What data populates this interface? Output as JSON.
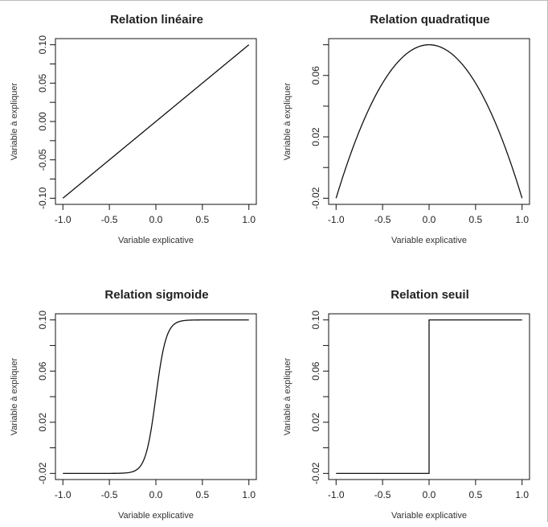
{
  "chart_data": [
    {
      "type": "line",
      "title": "Relation linéaire",
      "xlabel": "Variable explicative",
      "ylabel": "Variable à expliquer",
      "xlim": [
        -1.0,
        1.0
      ],
      "ylim": [
        -0.1,
        0.1
      ],
      "xticks": [
        "-1.0",
        "-0.5",
        "0.0",
        "0.5",
        "1.0"
      ],
      "yticks": [
        "-0.10",
        "-0.05",
        "0.00",
        "0.05",
        "0.10"
      ],
      "function": "linear",
      "points": [
        [
          -1.0,
          -0.1
        ],
        [
          -0.5,
          -0.05
        ],
        [
          0.0,
          0.0
        ],
        [
          0.5,
          0.05
        ],
        [
          1.0,
          0.1
        ]
      ],
      "grid": false
    },
    {
      "type": "line",
      "title": "Relation quadratique",
      "xlabel": "Variable explicative",
      "ylabel": "Variable à expliquer",
      "xlim": [
        -1.0,
        1.0
      ],
      "ylim": [
        -0.02,
        0.08
      ],
      "xticks": [
        "-1.0",
        "-0.5",
        "0.0",
        "0.5",
        "1.0"
      ],
      "yticks": [
        "-0.02",
        "0.02",
        "0.06"
      ],
      "function": "quadratic",
      "points": [
        [
          -1.0,
          -0.02
        ],
        [
          -0.5,
          0.055
        ],
        [
          0.0,
          0.08
        ],
        [
          0.5,
          0.055
        ],
        [
          1.0,
          -0.02
        ]
      ],
      "grid": false
    },
    {
      "type": "line",
      "title": "Relation sigmoide",
      "xlabel": "Variable explicative",
      "ylabel": "Variable à expliquer",
      "xlim": [
        -1.0,
        1.0
      ],
      "ylim": [
        -0.02,
        0.1
      ],
      "xticks": [
        "-1.0",
        "-0.5",
        "0.0",
        "0.5",
        "1.0"
      ],
      "yticks": [
        "-0.02",
        "0.02",
        "0.06",
        "0.10"
      ],
      "function": "sigmoid",
      "points": [
        [
          -1.0,
          -0.02
        ],
        [
          -0.3,
          -0.019
        ],
        [
          -0.1,
          0.005
        ],
        [
          0.0,
          0.04
        ],
        [
          0.1,
          0.075
        ],
        [
          0.3,
          0.099
        ],
        [
          1.0,
          0.1
        ]
      ],
      "grid": false
    },
    {
      "type": "line",
      "title": "Relation seuil",
      "xlabel": "Variable explicative",
      "ylabel": "Variable à expliquer",
      "xlim": [
        -1.0,
        1.0
      ],
      "ylim": [
        -0.02,
        0.1
      ],
      "xticks": [
        "-1.0",
        "-0.5",
        "0.0",
        "0.5",
        "1.0"
      ],
      "yticks": [
        "-0.02",
        "0.02",
        "0.06",
        "0.10"
      ],
      "function": "step",
      "points": [
        [
          -1.0,
          -0.02
        ],
        [
          0.0,
          -0.02
        ],
        [
          0.0,
          0.1
        ],
        [
          1.0,
          0.1
        ]
      ],
      "grid": false
    }
  ]
}
